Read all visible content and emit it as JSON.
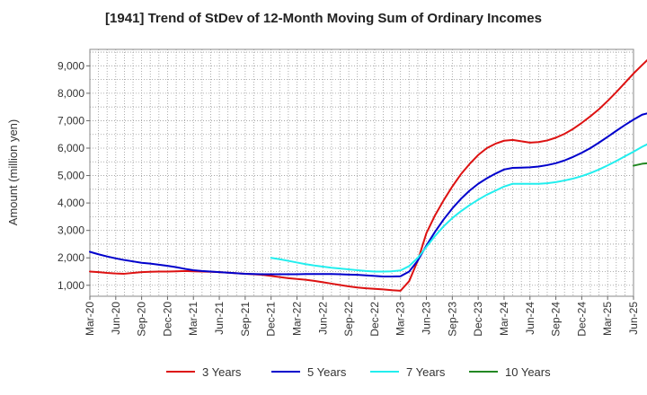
{
  "chart_data": {
    "type": "line",
    "title": "[1941]  Trend of StDev of 12-Month Moving Sum of Ordinary Incomes",
    "xlabel": "",
    "ylabel": "Amount (million yen)",
    "x_ticks": [
      "Mar-20",
      "Jun-20",
      "Sep-20",
      "Dec-20",
      "Mar-21",
      "Jun-21",
      "Sep-21",
      "Dec-21",
      "Mar-22",
      "Jun-22",
      "Sep-22",
      "Dec-22",
      "Mar-23",
      "Jun-23",
      "Sep-23",
      "Dec-23",
      "Mar-24",
      "Jun-24",
      "Sep-24",
      "Dec-24",
      "Mar-25",
      "Jun-25"
    ],
    "y_ticks": [
      1000,
      2000,
      3000,
      4000,
      5000,
      6000,
      7000,
      8000,
      9000
    ],
    "y_tick_labels": [
      "1,000",
      "2,000",
      "3,000",
      "4,000",
      "5,000",
      "6,000",
      "7,000",
      "8,000",
      "9,000"
    ],
    "ylim": [
      600,
      9600
    ],
    "grid": true,
    "legend_position": "bottom",
    "series": [
      {
        "name": "3 Years",
        "color": "#dd1111",
        "points": [
          [
            0,
            1500
          ],
          [
            1,
            1480
          ],
          [
            2,
            1450
          ],
          [
            3,
            1430
          ],
          [
            4,
            1420
          ],
          [
            5,
            1450
          ],
          [
            6,
            1480
          ],
          [
            7,
            1490
          ],
          [
            8,
            1500
          ],
          [
            9,
            1500
          ],
          [
            10,
            1510
          ],
          [
            11,
            1520
          ],
          [
            12,
            1510
          ],
          [
            13,
            1500
          ],
          [
            14,
            1490
          ],
          [
            15,
            1480
          ],
          [
            16,
            1460
          ],
          [
            17,
            1440
          ],
          [
            18,
            1420
          ],
          [
            19,
            1400
          ],
          [
            20,
            1380
          ],
          [
            21,
            1340
          ],
          [
            22,
            1300
          ],
          [
            23,
            1260
          ],
          [
            24,
            1230
          ],
          [
            25,
            1200
          ],
          [
            26,
            1160
          ],
          [
            27,
            1110
          ],
          [
            28,
            1060
          ],
          [
            29,
            1010
          ],
          [
            30,
            960
          ],
          [
            31,
            920
          ],
          [
            32,
            890
          ],
          [
            33,
            870
          ],
          [
            34,
            850
          ],
          [
            35,
            820
          ],
          [
            36,
            800
          ],
          [
            37,
            1150
          ],
          [
            38,
            1900
          ],
          [
            39,
            2900
          ],
          [
            40,
            3550
          ],
          [
            41,
            4100
          ],
          [
            42,
            4600
          ],
          [
            43,
            5050
          ],
          [
            44,
            5420
          ],
          [
            45,
            5750
          ],
          [
            46,
            6000
          ],
          [
            47,
            6160
          ],
          [
            48,
            6270
          ],
          [
            49,
            6300
          ],
          [
            50,
            6250
          ],
          [
            51,
            6200
          ],
          [
            52,
            6220
          ],
          [
            53,
            6280
          ],
          [
            54,
            6380
          ],
          [
            55,
            6520
          ],
          [
            56,
            6700
          ],
          [
            57,
            6920
          ],
          [
            58,
            7160
          ],
          [
            59,
            7420
          ],
          [
            60,
            7720
          ],
          [
            61,
            8040
          ],
          [
            62,
            8380
          ],
          [
            63,
            8720
          ],
          [
            64,
            9030
          ],
          [
            65,
            9330
          ]
        ]
      },
      {
        "name": "5 Years",
        "color": "#0000cc",
        "points": [
          [
            0,
            2220
          ],
          [
            1,
            2130
          ],
          [
            2,
            2050
          ],
          [
            3,
            1980
          ],
          [
            4,
            1920
          ],
          [
            5,
            1870
          ],
          [
            6,
            1820
          ],
          [
            7,
            1790
          ],
          [
            8,
            1750
          ],
          [
            9,
            1710
          ],
          [
            10,
            1660
          ],
          [
            11,
            1600
          ],
          [
            12,
            1550
          ],
          [
            13,
            1520
          ],
          [
            14,
            1500
          ],
          [
            15,
            1480
          ],
          [
            16,
            1460
          ],
          [
            17,
            1440
          ],
          [
            18,
            1420
          ],
          [
            19,
            1410
          ],
          [
            20,
            1400
          ],
          [
            21,
            1400
          ],
          [
            22,
            1400
          ],
          [
            23,
            1400
          ],
          [
            24,
            1400
          ],
          [
            25,
            1410
          ],
          [
            26,
            1410
          ],
          [
            27,
            1410
          ],
          [
            28,
            1410
          ],
          [
            29,
            1400
          ],
          [
            30,
            1390
          ],
          [
            31,
            1380
          ],
          [
            32,
            1360
          ],
          [
            33,
            1340
          ],
          [
            34,
            1320
          ],
          [
            35,
            1320
          ],
          [
            36,
            1330
          ],
          [
            37,
            1500
          ],
          [
            38,
            1900
          ],
          [
            39,
            2450
          ],
          [
            40,
            2950
          ],
          [
            41,
            3400
          ],
          [
            42,
            3800
          ],
          [
            43,
            4150
          ],
          [
            44,
            4450
          ],
          [
            45,
            4700
          ],
          [
            46,
            4900
          ],
          [
            47,
            5070
          ],
          [
            48,
            5220
          ],
          [
            49,
            5280
          ],
          [
            50,
            5290
          ],
          [
            51,
            5300
          ],
          [
            52,
            5330
          ],
          [
            53,
            5380
          ],
          [
            54,
            5450
          ],
          [
            55,
            5550
          ],
          [
            56,
            5680
          ],
          [
            57,
            5830
          ],
          [
            58,
            6000
          ],
          [
            59,
            6200
          ],
          [
            60,
            6410
          ],
          [
            61,
            6630
          ],
          [
            62,
            6840
          ],
          [
            63,
            7040
          ],
          [
            64,
            7220
          ],
          [
            65,
            7300
          ]
        ]
      },
      {
        "name": "7 Years",
        "color": "#22eeee",
        "points": [
          [
            21,
            2000
          ],
          [
            22,
            1950
          ],
          [
            23,
            1890
          ],
          [
            24,
            1830
          ],
          [
            25,
            1770
          ],
          [
            26,
            1720
          ],
          [
            27,
            1680
          ],
          [
            28,
            1640
          ],
          [
            29,
            1610
          ],
          [
            30,
            1580
          ],
          [
            31,
            1550
          ],
          [
            32,
            1520
          ],
          [
            33,
            1500
          ],
          [
            34,
            1500
          ],
          [
            35,
            1510
          ],
          [
            36,
            1540
          ],
          [
            37,
            1700
          ],
          [
            38,
            2000
          ],
          [
            39,
            2400
          ],
          [
            40,
            2800
          ],
          [
            41,
            3150
          ],
          [
            42,
            3450
          ],
          [
            43,
            3700
          ],
          [
            44,
            3920
          ],
          [
            45,
            4120
          ],
          [
            46,
            4300
          ],
          [
            47,
            4450
          ],
          [
            48,
            4600
          ],
          [
            49,
            4700
          ],
          [
            50,
            4700
          ],
          [
            51,
            4700
          ],
          [
            52,
            4700
          ],
          [
            53,
            4720
          ],
          [
            54,
            4760
          ],
          [
            55,
            4820
          ],
          [
            56,
            4890
          ],
          [
            57,
            4980
          ],
          [
            58,
            5090
          ],
          [
            59,
            5220
          ],
          [
            60,
            5370
          ],
          [
            61,
            5530
          ],
          [
            62,
            5700
          ],
          [
            63,
            5870
          ],
          [
            64,
            6050
          ],
          [
            65,
            6200
          ]
        ]
      },
      {
        "name": "10 Years",
        "color": "#228822",
        "points": [
          [
            63,
            5360
          ],
          [
            64,
            5430
          ],
          [
            65,
            5460
          ]
        ]
      }
    ]
  }
}
